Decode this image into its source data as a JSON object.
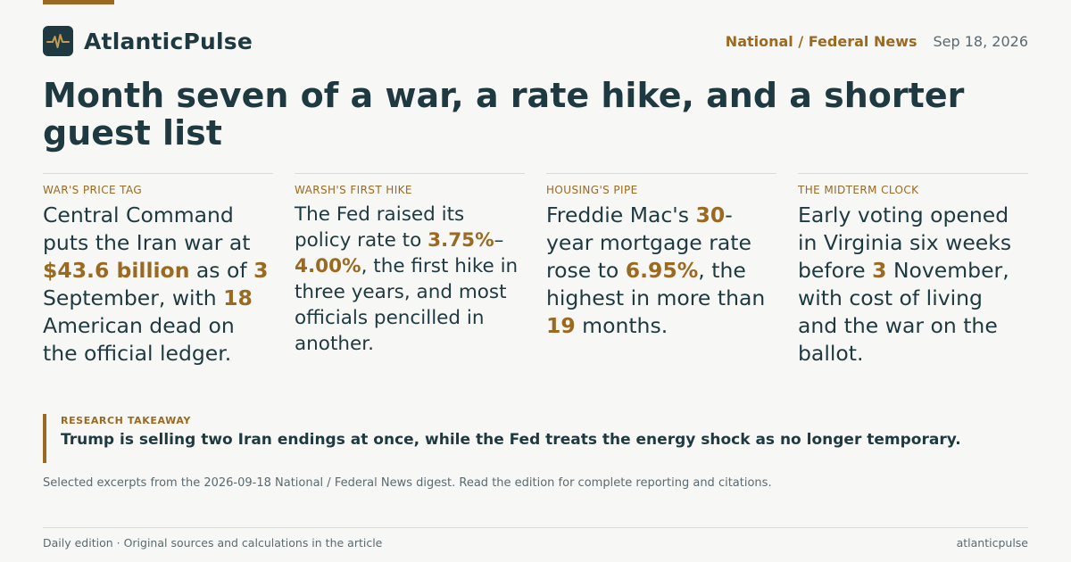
{
  "colors": {
    "accent": "#9a6a22",
    "ink": "#1e3a40",
    "muted": "#5a6a70",
    "rule": "#d8dcdc"
  },
  "header": {
    "logo_icon": "pulse-icon",
    "brand": "AtlanticPulse",
    "section": "National / Federal News",
    "date": "Sep 18, 2026"
  },
  "headline": "Month seven of a war, a rate hike, and a shorter guest list",
  "cards": [
    {
      "kicker": "WAR'S PRICE TAG",
      "segments": [
        {
          "t": "Central Command puts the Iran war at "
        },
        {
          "t": "$43.6 billion",
          "hl": true
        },
        {
          "t": " as of "
        },
        {
          "t": "3",
          "hl": true
        },
        {
          "t": " September, with "
        },
        {
          "t": "18",
          "hl": true
        },
        {
          "t": " American dead on the official ledger."
        }
      ]
    },
    {
      "kicker": "WARSH'S FIRST HIKE",
      "segments": [
        {
          "t": "The Fed raised its policy rate to "
        },
        {
          "t": "3.75%",
          "hl": true
        },
        {
          "t": "–"
        },
        {
          "t": "4.00%",
          "hl": true
        },
        {
          "t": ", the first hike in three years, and most officials pencilled in another."
        }
      ]
    },
    {
      "kicker": "HOUSING'S PIPE",
      "segments": [
        {
          "t": "Freddie Mac's "
        },
        {
          "t": "30",
          "hl": true
        },
        {
          "t": "-year mortgage rate rose to "
        },
        {
          "t": "6.95%",
          "hl": true
        },
        {
          "t": ", the highest in more than "
        },
        {
          "t": "19",
          "hl": true
        },
        {
          "t": " months."
        }
      ]
    },
    {
      "kicker": "THE MIDTERM CLOCK",
      "segments": [
        {
          "t": "Early voting opened in Virginia six weeks before "
        },
        {
          "t": "3",
          "hl": true
        },
        {
          "t": " November, with cost of living and the war on the ballot."
        }
      ]
    }
  ],
  "takeaway": {
    "label": "RESEARCH TAKEAWAY",
    "text": "Trump is selling two Iran endings at once, while the Fed treats the energy shock as no longer temporary."
  },
  "note": "Selected excerpts from the 2026-09-18 National / Federal News digest. Read the edition for complete reporting and citations.",
  "footer": {
    "left": "Daily edition · Original sources and calculations in the article",
    "right": "atlanticpulse"
  }
}
